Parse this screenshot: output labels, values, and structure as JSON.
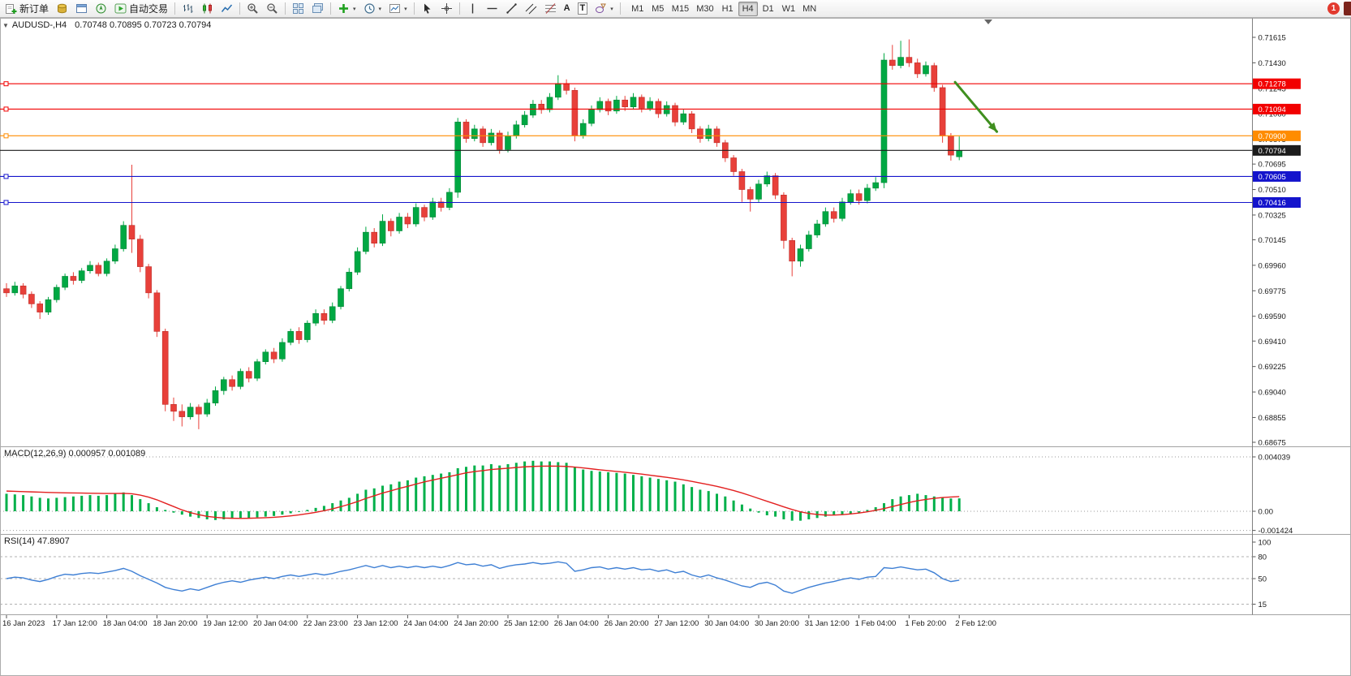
{
  "toolbar": {
    "new_order_label": "新订单",
    "auto_trading_label": "自动交易",
    "timeframes": [
      "M1",
      "M5",
      "M15",
      "M30",
      "H1",
      "H4",
      "D1",
      "W1",
      "MN"
    ],
    "active_timeframe": "H4",
    "notification_count": "1",
    "glyphs": {
      "text_tool": "A",
      "label_tool": "T"
    }
  },
  "chart_data": {
    "type": "candlestick",
    "symbol": "AUDUSD-,H4",
    "ohlc_display": "0.70748 0.70895 0.70723 0.70794",
    "price_axis_labels": [
      "0.71615",
      "0.71430",
      "0.71245",
      "0.71060",
      "0.70875",
      "0.70695",
      "0.70510",
      "0.70325",
      "0.70145",
      "0.69960",
      "0.69775",
      "0.69590",
      "0.69410",
      "0.69225",
      "0.69040",
      "0.68855",
      "0.68675"
    ],
    "horizontal_lines": [
      {
        "label": "0.71278",
        "price": 0.71278,
        "color": "#f20000",
        "handle": true
      },
      {
        "label": "0.71094",
        "price": 0.71094,
        "color": "#f20000",
        "handle": true
      },
      {
        "label": "0.70900",
        "price": 0.709,
        "color": "#ff8c00",
        "handle": true
      },
      {
        "label": "0.70794",
        "price": 0.70794,
        "color": "#1c1c1c",
        "handle": false
      },
      {
        "label": "0.70605",
        "price": 0.70605,
        "color": "#1414cc",
        "handle": true
      },
      {
        "label": "0.70416",
        "price": 0.70416,
        "color": "#1414cc",
        "handle": true
      }
    ],
    "arrow": {
      "from_candle": 113.5,
      "from_price": 0.7129,
      "to_candle": 118.5,
      "to_price": 0.7093,
      "color": "#3f8f1f"
    },
    "candles": [
      [
        0.6979,
        0.6983,
        0.6973,
        0.6976
      ],
      [
        0.6976,
        0.6984,
        0.6974,
        0.6981
      ],
      [
        0.6981,
        0.6983,
        0.6972,
        0.6975
      ],
      [
        0.6975,
        0.6977,
        0.6965,
        0.6968
      ],
      [
        0.6968,
        0.697,
        0.6957,
        0.6962
      ],
      [
        0.6962,
        0.6973,
        0.696,
        0.6971
      ],
      [
        0.6971,
        0.6982,
        0.6969,
        0.698
      ],
      [
        0.698,
        0.699,
        0.6978,
        0.6988
      ],
      [
        0.6988,
        0.6991,
        0.6982,
        0.6985
      ],
      [
        0.6985,
        0.6994,
        0.6983,
        0.6992
      ],
      [
        0.6992,
        0.6999,
        0.699,
        0.6996
      ],
      [
        0.6996,
        0.6998,
        0.6988,
        0.699
      ],
      [
        0.699,
        0.7001,
        0.6988,
        0.6999
      ],
      [
        0.6999,
        0.7011,
        0.6997,
        0.7008
      ],
      [
        0.7008,
        0.7028,
        0.7006,
        0.7025
      ],
      [
        0.7025,
        0.7069,
        0.7005,
        0.7015
      ],
      [
        0.7015,
        0.7018,
        0.6991,
        0.6995
      ],
      [
        0.6995,
        0.6997,
        0.6972,
        0.6976
      ],
      [
        0.6976,
        0.6978,
        0.6944,
        0.6948
      ],
      [
        0.6948,
        0.695,
        0.689,
        0.6895
      ],
      [
        0.6895,
        0.69,
        0.6883,
        0.689
      ],
      [
        0.689,
        0.6895,
        0.6879,
        0.6886
      ],
      [
        0.6886,
        0.6896,
        0.6884,
        0.6893
      ],
      [
        0.6893,
        0.6895,
        0.6877,
        0.6888
      ],
      [
        0.6888,
        0.6899,
        0.6886,
        0.6896
      ],
      [
        0.6896,
        0.6908,
        0.6894,
        0.6905
      ],
      [
        0.6905,
        0.6915,
        0.6902,
        0.6913
      ],
      [
        0.6913,
        0.6916,
        0.6905,
        0.6908
      ],
      [
        0.6908,
        0.6921,
        0.6906,
        0.6919
      ],
      [
        0.6919,
        0.6922,
        0.6911,
        0.6914
      ],
      [
        0.6914,
        0.6928,
        0.6912,
        0.6926
      ],
      [
        0.6926,
        0.6935,
        0.6924,
        0.6933
      ],
      [
        0.6933,
        0.6936,
        0.6925,
        0.6928
      ],
      [
        0.6928,
        0.6943,
        0.6926,
        0.694
      ],
      [
        0.694,
        0.695,
        0.6938,
        0.6948
      ],
      [
        0.6948,
        0.6951,
        0.6939,
        0.6942
      ],
      [
        0.6942,
        0.6956,
        0.694,
        0.6954
      ],
      [
        0.6954,
        0.6964,
        0.6952,
        0.6961
      ],
      [
        0.6961,
        0.6964,
        0.6953,
        0.6956
      ],
      [
        0.6956,
        0.6969,
        0.6954,
        0.6966
      ],
      [
        0.6966,
        0.6981,
        0.6964,
        0.6979
      ],
      [
        0.6979,
        0.6994,
        0.6977,
        0.6991
      ],
      [
        0.6991,
        0.7009,
        0.6989,
        0.7006
      ],
      [
        0.7006,
        0.7024,
        0.7004,
        0.702
      ],
      [
        0.702,
        0.7023,
        0.7009,
        0.7012
      ],
      [
        0.7012,
        0.7033,
        0.701,
        0.7028
      ],
      [
        0.7028,
        0.703,
        0.7017,
        0.7021
      ],
      [
        0.7021,
        0.7034,
        0.7019,
        0.7031
      ],
      [
        0.7031,
        0.7034,
        0.7023,
        0.7026
      ],
      [
        0.7026,
        0.7041,
        0.7024,
        0.7038
      ],
      [
        0.7038,
        0.704,
        0.7028,
        0.7031
      ],
      [
        0.7031,
        0.7045,
        0.7029,
        0.7042
      ],
      [
        0.7042,
        0.7045,
        0.7035,
        0.7038
      ],
      [
        0.7038,
        0.7052,
        0.7036,
        0.7049
      ],
      [
        0.7049,
        0.7103,
        0.7045,
        0.71
      ],
      [
        0.71,
        0.7102,
        0.7085,
        0.7088
      ],
      [
        0.7088,
        0.7098,
        0.7086,
        0.7095
      ],
      [
        0.7095,
        0.7097,
        0.7082,
        0.7085
      ],
      [
        0.7085,
        0.7095,
        0.7083,
        0.7092
      ],
      [
        0.7092,
        0.7094,
        0.7077,
        0.708
      ],
      [
        0.708,
        0.7093,
        0.7078,
        0.709
      ],
      [
        0.709,
        0.7101,
        0.7088,
        0.7098
      ],
      [
        0.7098,
        0.7108,
        0.7096,
        0.7105
      ],
      [
        0.7105,
        0.7116,
        0.7103,
        0.7113
      ],
      [
        0.7113,
        0.7116,
        0.7106,
        0.7109
      ],
      [
        0.7109,
        0.7121,
        0.7107,
        0.7118
      ],
      [
        0.7118,
        0.7134,
        0.7116,
        0.7128
      ],
      [
        0.7128,
        0.7131,
        0.712,
        0.7123
      ],
      [
        0.7123,
        0.7125,
        0.7086,
        0.709
      ],
      [
        0.709,
        0.7102,
        0.7088,
        0.7099
      ],
      [
        0.7099,
        0.7112,
        0.7097,
        0.7109
      ],
      [
        0.7109,
        0.7118,
        0.7107,
        0.7115
      ],
      [
        0.7115,
        0.7117,
        0.7105,
        0.7108
      ],
      [
        0.7108,
        0.7119,
        0.7106,
        0.7116
      ],
      [
        0.7116,
        0.7119,
        0.7108,
        0.7111
      ],
      [
        0.7111,
        0.7121,
        0.7109,
        0.7118
      ],
      [
        0.7118,
        0.712,
        0.7107,
        0.711
      ],
      [
        0.711,
        0.7118,
        0.7108,
        0.7115
      ],
      [
        0.7115,
        0.7117,
        0.7103,
        0.7106
      ],
      [
        0.7106,
        0.7115,
        0.7104,
        0.7112
      ],
      [
        0.7112,
        0.7114,
        0.7097,
        0.71
      ],
      [
        0.71,
        0.7109,
        0.7098,
        0.7106
      ],
      [
        0.7106,
        0.7108,
        0.7092,
        0.7095
      ],
      [
        0.7095,
        0.7097,
        0.7085,
        0.7088
      ],
      [
        0.7088,
        0.7098,
        0.7086,
        0.7095
      ],
      [
        0.7095,
        0.7097,
        0.7082,
        0.7085
      ],
      [
        0.7085,
        0.7087,
        0.7071,
        0.7074
      ],
      [
        0.7074,
        0.7076,
        0.7061,
        0.7064
      ],
      [
        0.7064,
        0.7066,
        0.7042,
        0.7051
      ],
      [
        0.7051,
        0.7053,
        0.7035,
        0.7044
      ],
      [
        0.7044,
        0.7058,
        0.7042,
        0.7055
      ],
      [
        0.7055,
        0.7064,
        0.7053,
        0.7061
      ],
      [
        0.7061,
        0.7063,
        0.7044,
        0.7047
      ],
      [
        0.7047,
        0.7049,
        0.7008,
        0.7014
      ],
      [
        0.7014,
        0.7016,
        0.6988,
        0.6999
      ],
      [
        0.6999,
        0.7011,
        0.6995,
        0.7008
      ],
      [
        0.7008,
        0.7021,
        0.7006,
        0.7018
      ],
      [
        0.7018,
        0.7029,
        0.7016,
        0.7026
      ],
      [
        0.7026,
        0.7038,
        0.7024,
        0.7035
      ],
      [
        0.7035,
        0.7038,
        0.7027,
        0.703
      ],
      [
        0.703,
        0.7045,
        0.7028,
        0.7042
      ],
      [
        0.7042,
        0.7051,
        0.704,
        0.7048
      ],
      [
        0.7048,
        0.7051,
        0.704,
        0.7043
      ],
      [
        0.7043,
        0.7055,
        0.7041,
        0.7052
      ],
      [
        0.7052,
        0.706,
        0.705,
        0.7056
      ],
      [
        0.7056,
        0.715,
        0.7052,
        0.7145
      ],
      [
        0.7145,
        0.7156,
        0.7138,
        0.7141
      ],
      [
        0.7141,
        0.7159,
        0.7139,
        0.7147
      ],
      [
        0.7147,
        0.716,
        0.714,
        0.7143
      ],
      [
        0.7143,
        0.7146,
        0.7132,
        0.7135
      ],
      [
        0.7135,
        0.7144,
        0.7133,
        0.7141
      ],
      [
        0.7141,
        0.7143,
        0.7122,
        0.7125
      ],
      [
        0.7125,
        0.7127,
        0.7085,
        0.709
      ],
      [
        0.709,
        0.7092,
        0.7072,
        0.7076
      ],
      [
        0.70748,
        0.70895,
        0.70723,
        0.70794
      ]
    ],
    "macd": {
      "label": "MACD(12,26,9) 0.000957 0.001089",
      "axis_labels": [
        "0.004039",
        "0.00",
        "-0.001424"
      ],
      "hist": [
        0.0013,
        0.00125,
        0.0012,
        0.0011,
        0.001,
        0.00095,
        0.001,
        0.00105,
        0.0011,
        0.00115,
        0.0012,
        0.00115,
        0.0012,
        0.0013,
        0.0014,
        0.0012,
        0.0009,
        0.0006,
        0.0003,
        0.0001,
        -0.0001,
        -0.00025,
        -0.0004,
        -0.0005,
        -0.0006,
        -0.00065,
        -0.0006,
        -0.00055,
        -0.0005,
        -0.0005,
        -0.00045,
        -0.0004,
        -0.00035,
        -0.00025,
        -0.00015,
        -5e-05,
        0.0001,
        0.00025,
        0.0004,
        0.0006,
        0.0008,
        0.001,
        0.0013,
        0.0016,
        0.0017,
        0.0019,
        0.002,
        0.0022,
        0.0023,
        0.0025,
        0.0026,
        0.0027,
        0.0028,
        0.0029,
        0.0032,
        0.0033,
        0.0034,
        0.0034,
        0.0035,
        0.0034,
        0.0035,
        0.0036,
        0.0037,
        0.00375,
        0.0037,
        0.0037,
        0.00365,
        0.0036,
        0.0033,
        0.0031,
        0.003,
        0.00295,
        0.0029,
        0.00285,
        0.0028,
        0.0027,
        0.0026,
        0.0025,
        0.0024,
        0.0023,
        0.0022,
        0.002,
        0.0018,
        0.0016,
        0.0015,
        0.0013,
        0.0011,
        0.0008,
        0.0005,
        0.0002,
        -0.0001,
        -0.0003,
        -0.0004,
        -0.0006,
        -0.0007,
        -0.0007,
        -0.0006,
        -0.0005,
        -0.0004,
        -0.0003,
        -0.00025,
        -0.0002,
        -0.0001,
        0.0001,
        0.0003,
        0.0006,
        0.0009,
        0.0011,
        0.0012,
        0.0013,
        0.0012,
        0.0011,
        0.001,
        0.00095,
        0.000957
      ],
      "signal": [
        0.0015,
        0.00148,
        0.00146,
        0.00144,
        0.00142,
        0.0014,
        0.00138,
        0.00137,
        0.00136,
        0.00135,
        0.00134,
        0.00133,
        0.00132,
        0.00132,
        0.00133,
        0.0013,
        0.0012,
        0.00105,
        0.00085,
        0.0006,
        0.00035,
        0.0001,
        -0.0001,
        -0.00025,
        -0.00038,
        -0.00045,
        -0.0005,
        -0.00052,
        -0.00053,
        -0.00052,
        -0.0005,
        -0.00048,
        -0.00045,
        -0.0004,
        -0.00034,
        -0.00027,
        -0.00018,
        -8e-05,
        4e-05,
        0.00018,
        0.00034,
        0.00052,
        0.00072,
        0.00095,
        0.00115,
        0.00135,
        0.00152,
        0.0017,
        0.00185,
        0.00202,
        0.00218,
        0.00232,
        0.00245,
        0.00258,
        0.00272,
        0.00285,
        0.00295,
        0.00302,
        0.0031,
        0.00315,
        0.0032,
        0.00325,
        0.0033,
        0.00333,
        0.00335,
        0.00336,
        0.00335,
        0.00333,
        0.00328,
        0.00322,
        0.00315,
        0.00308,
        0.00302,
        0.00296,
        0.0029,
        0.00283,
        0.00276,
        0.00268,
        0.0026,
        0.00252,
        0.00243,
        0.00233,
        0.00222,
        0.0021,
        0.00198,
        0.00185,
        0.0017,
        0.00154,
        0.00136,
        0.00116,
        0.00095,
        0.00074,
        0.00054,
        0.00033,
        0.00013,
        -4e-05,
        -0.00016,
        -0.00024,
        -0.00028,
        -0.00028,
        -0.00025,
        -0.0002,
        -0.00013,
        -4e-05,
        7e-05,
        0.0002,
        0.00035,
        0.0005,
        0.00065,
        0.00078,
        0.00088,
        0.00096,
        0.00102,
        0.00106,
        0.001089
      ]
    },
    "rsi": {
      "label": "RSI(14) 47.8907",
      "axis_labels": [
        "100",
        "80",
        "50",
        "15"
      ],
      "levels": [
        80,
        50,
        15
      ],
      "values": [
        50,
        52,
        51,
        48,
        46,
        49,
        53,
        56,
        55,
        57,
        58,
        57,
        59,
        61,
        64,
        60,
        54,
        49,
        44,
        38,
        35,
        33,
        36,
        34,
        38,
        42,
        45,
        47,
        45,
        48,
        50,
        52,
        50,
        53,
        55,
        53,
        55,
        57,
        55,
        57,
        60,
        62,
        65,
        68,
        65,
        68,
        65,
        67,
        65,
        67,
        65,
        67,
        65,
        68,
        72,
        69,
        70,
        67,
        69,
        64,
        67,
        69,
        70,
        72,
        70,
        71,
        73,
        71,
        60,
        62,
        65,
        66,
        63,
        65,
        63,
        65,
        62,
        63,
        60,
        62,
        58,
        60,
        55,
        52,
        55,
        51,
        48,
        44,
        40,
        38,
        43,
        45,
        41,
        33,
        30,
        34,
        38,
        41,
        44,
        46,
        49,
        51,
        49,
        52,
        53,
        65,
        64,
        66,
        64,
        62,
        63,
        58,
        50,
        46,
        47.89
      ],
      "current": "47.8907"
    },
    "time_labels": [
      "16 Jan 2023",
      "17 Jan 12:00",
      "18 Jan 04:00",
      "18 Jan 20:00",
      "19 Jan 12:00",
      "20 Jan 04:00",
      "22 Jan 23:00",
      "23 Jan 12:00",
      "24 Jan 04:00",
      "24 Jan 20:00",
      "25 Jan 12:00",
      "26 Jan 04:00",
      "26 Jan 20:00",
      "27 Jan 12:00",
      "30 Jan 04:00",
      "30 Jan 20:00",
      "31 Jan 12:00",
      "1 Feb 04:00",
      "1 Feb 20:00",
      "2 Feb 12:00"
    ]
  },
  "colors": {
    "candle_up": "#00a843",
    "candle_up_border": "#028536",
    "candle_down": "#e8403a",
    "candle_down_border": "#bf2b26",
    "macd_hist": "#00b04a",
    "macd_signal": "#e32020",
    "rsi_line": "#3e7fd4",
    "background": "#ffffff"
  }
}
